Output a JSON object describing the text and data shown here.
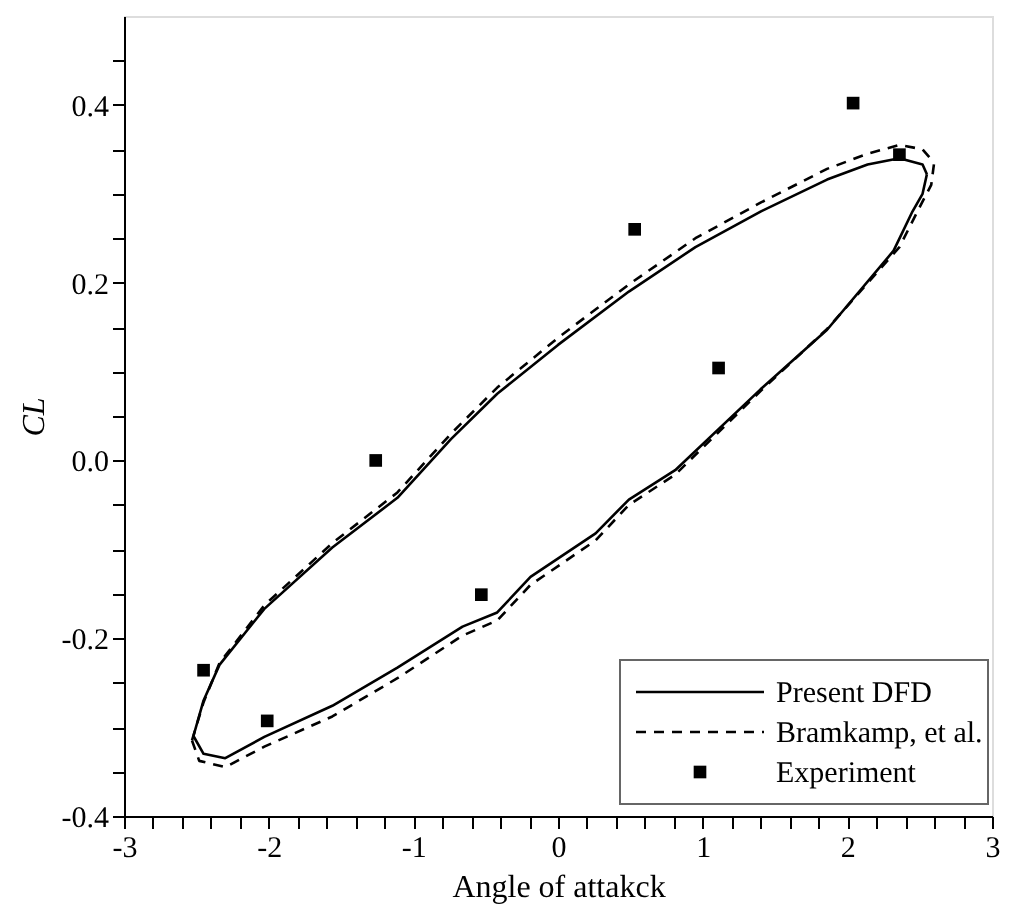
{
  "chart_data": {
    "type": "line",
    "xlabel": "Angle of attakck",
    "ylabel": "CL",
    "xlim": [
      -3,
      3
    ],
    "ylim": [
      -0.4,
      0.5
    ],
    "xticks": [
      -3,
      {
        "value": -2.8,
        "label": null
      },
      {
        "value": -2.6,
        "label": null
      },
      {
        "value": -2.4,
        "label": null
      },
      {
        "value": -2.2,
        "label": null
      },
      -2,
      {
        "value": -1.8,
        "label": null
      },
      {
        "value": -1.6,
        "label": null
      },
      {
        "value": -1.4,
        "label": null
      },
      {
        "value": -1.2,
        "label": null
      },
      -1,
      {
        "value": -0.8,
        "label": null
      },
      {
        "value": -0.6,
        "label": null
      },
      {
        "value": -0.4,
        "label": null
      },
      {
        "value": -0.2,
        "label": null
      },
      0,
      {
        "value": 0.2,
        "label": null
      },
      {
        "value": 0.4,
        "label": null
      },
      {
        "value": 0.6,
        "label": null
      },
      {
        "value": 0.8,
        "label": null
      },
      1,
      {
        "value": 1.2,
        "label": null
      },
      {
        "value": 1.4,
        "label": null
      },
      {
        "value": 1.6,
        "label": null
      },
      {
        "value": 1.8,
        "label": null
      },
      2,
      {
        "value": 2.2,
        "label": null
      },
      {
        "value": 2.4,
        "label": null
      },
      {
        "value": 2.6,
        "label": null
      },
      {
        "value": 2.8,
        "label": null
      },
      3
    ],
    "yticks": [
      {
        "value": -0.4,
        "label": "-0.4"
      },
      {
        "value": -0.35,
        "label": null
      },
      {
        "value": -0.3,
        "label": null
      },
      {
        "value": -0.25,
        "label": null
      },
      {
        "value": -0.2,
        "label": "-0.2"
      },
      {
        "value": -0.15,
        "label": null
      },
      {
        "value": -0.1,
        "label": null
      },
      {
        "value": -0.05,
        "label": null
      },
      {
        "value": 0,
        "label": "0.0"
      },
      {
        "value": 0.05,
        "label": null
      },
      {
        "value": 0.1,
        "label": null
      },
      {
        "value": 0.15,
        "label": null
      },
      {
        "value": 0.2,
        "label": "0.2"
      },
      {
        "value": 0.25,
        "label": null
      },
      {
        "value": 0.3,
        "label": null
      },
      {
        "value": 0.35,
        "label": null
      },
      {
        "value": 0.4,
        "label": "0.4"
      },
      {
        "value": 0.45,
        "label": null
      }
    ],
    "grid": false,
    "legend": "bottom right",
    "series": [
      {
        "name": "Present DFD",
        "type": "line",
        "line_style": "solid",
        "color": "#000000",
        "x": [
          -2.52,
          -2.45,
          -2.34,
          -2.03,
          -1.56,
          -1.11,
          -0.74,
          -0.42,
          0,
          0.49,
          0.95,
          1.4,
          1.86,
          2.14,
          2.36,
          2.52,
          2.55
        ],
        "values": [
          -0.31,
          -0.27,
          -0.23,
          -0.167,
          -0.098,
          -0.042,
          0.024,
          0.075,
          0.13,
          0.19,
          0.24,
          0.28,
          0.316,
          0.333,
          0.34,
          0.333,
          0.322
        ]
      },
      {
        "type": "line",
        "line_style": "solid",
        "color": "#000000",
        "x": [
          -2.52,
          -2.45,
          -2.3,
          -2.03,
          -1.56,
          -1.11,
          -0.66,
          -0.42,
          -0.19,
          0.26,
          0.49,
          0.81,
          1.4,
          1.86,
          2.32,
          2.45,
          2.52,
          2.55
        ],
        "values": [
          -0.31,
          -0.33,
          -0.335,
          -0.311,
          -0.276,
          -0.233,
          -0.187,
          -0.171,
          -0.131,
          -0.082,
          -0.044,
          -0.011,
          0.08,
          0.147,
          0.236,
          0.28,
          0.3,
          0.322
        ]
      },
      {
        "name": "Bramkamp, et al.",
        "type": "line",
        "line_style": "dashed",
        "color": "#000000",
        "x": [
          -2.53,
          -2.45,
          -2.34,
          -2.03,
          -1.56,
          -1.11,
          -0.74,
          -0.42,
          0,
          0.49,
          0.95,
          1.4,
          1.86,
          2.14,
          2.36,
          2.52,
          2.6
        ],
        "values": [
          -0.315,
          -0.272,
          -0.228,
          -0.163,
          -0.093,
          -0.036,
          0.03,
          0.082,
          0.138,
          0.198,
          0.25,
          0.29,
          0.328,
          0.345,
          0.355,
          0.35,
          0.335
        ]
      },
      {
        "type": "line",
        "line_style": "dashed",
        "color": "#000000",
        "x": [
          -2.53,
          -2.48,
          -2.3,
          -2.03,
          -1.56,
          -1.11,
          -0.66,
          -0.42,
          -0.19,
          0.26,
          0.49,
          0.81,
          1.4,
          1.86,
          2.36,
          2.5,
          2.58,
          2.6
        ],
        "values": [
          -0.315,
          -0.338,
          -0.345,
          -0.322,
          -0.288,
          -0.245,
          -0.197,
          -0.18,
          -0.14,
          -0.09,
          -0.05,
          -0.016,
          0.078,
          0.148,
          0.24,
          0.285,
          0.31,
          0.335
        ]
      },
      {
        "name": "Experiment",
        "type": "scatter",
        "marker": "square",
        "color": "#000000",
        "x": [
          -2.45,
          -2.01,
          -1.26,
          -0.53,
          0.53,
          1.11,
          2.04,
          2.36
        ],
        "values": [
          -0.236,
          -0.293,
          0.0,
          -0.151,
          0.26,
          0.104,
          0.402,
          0.344
        ]
      }
    ]
  }
}
